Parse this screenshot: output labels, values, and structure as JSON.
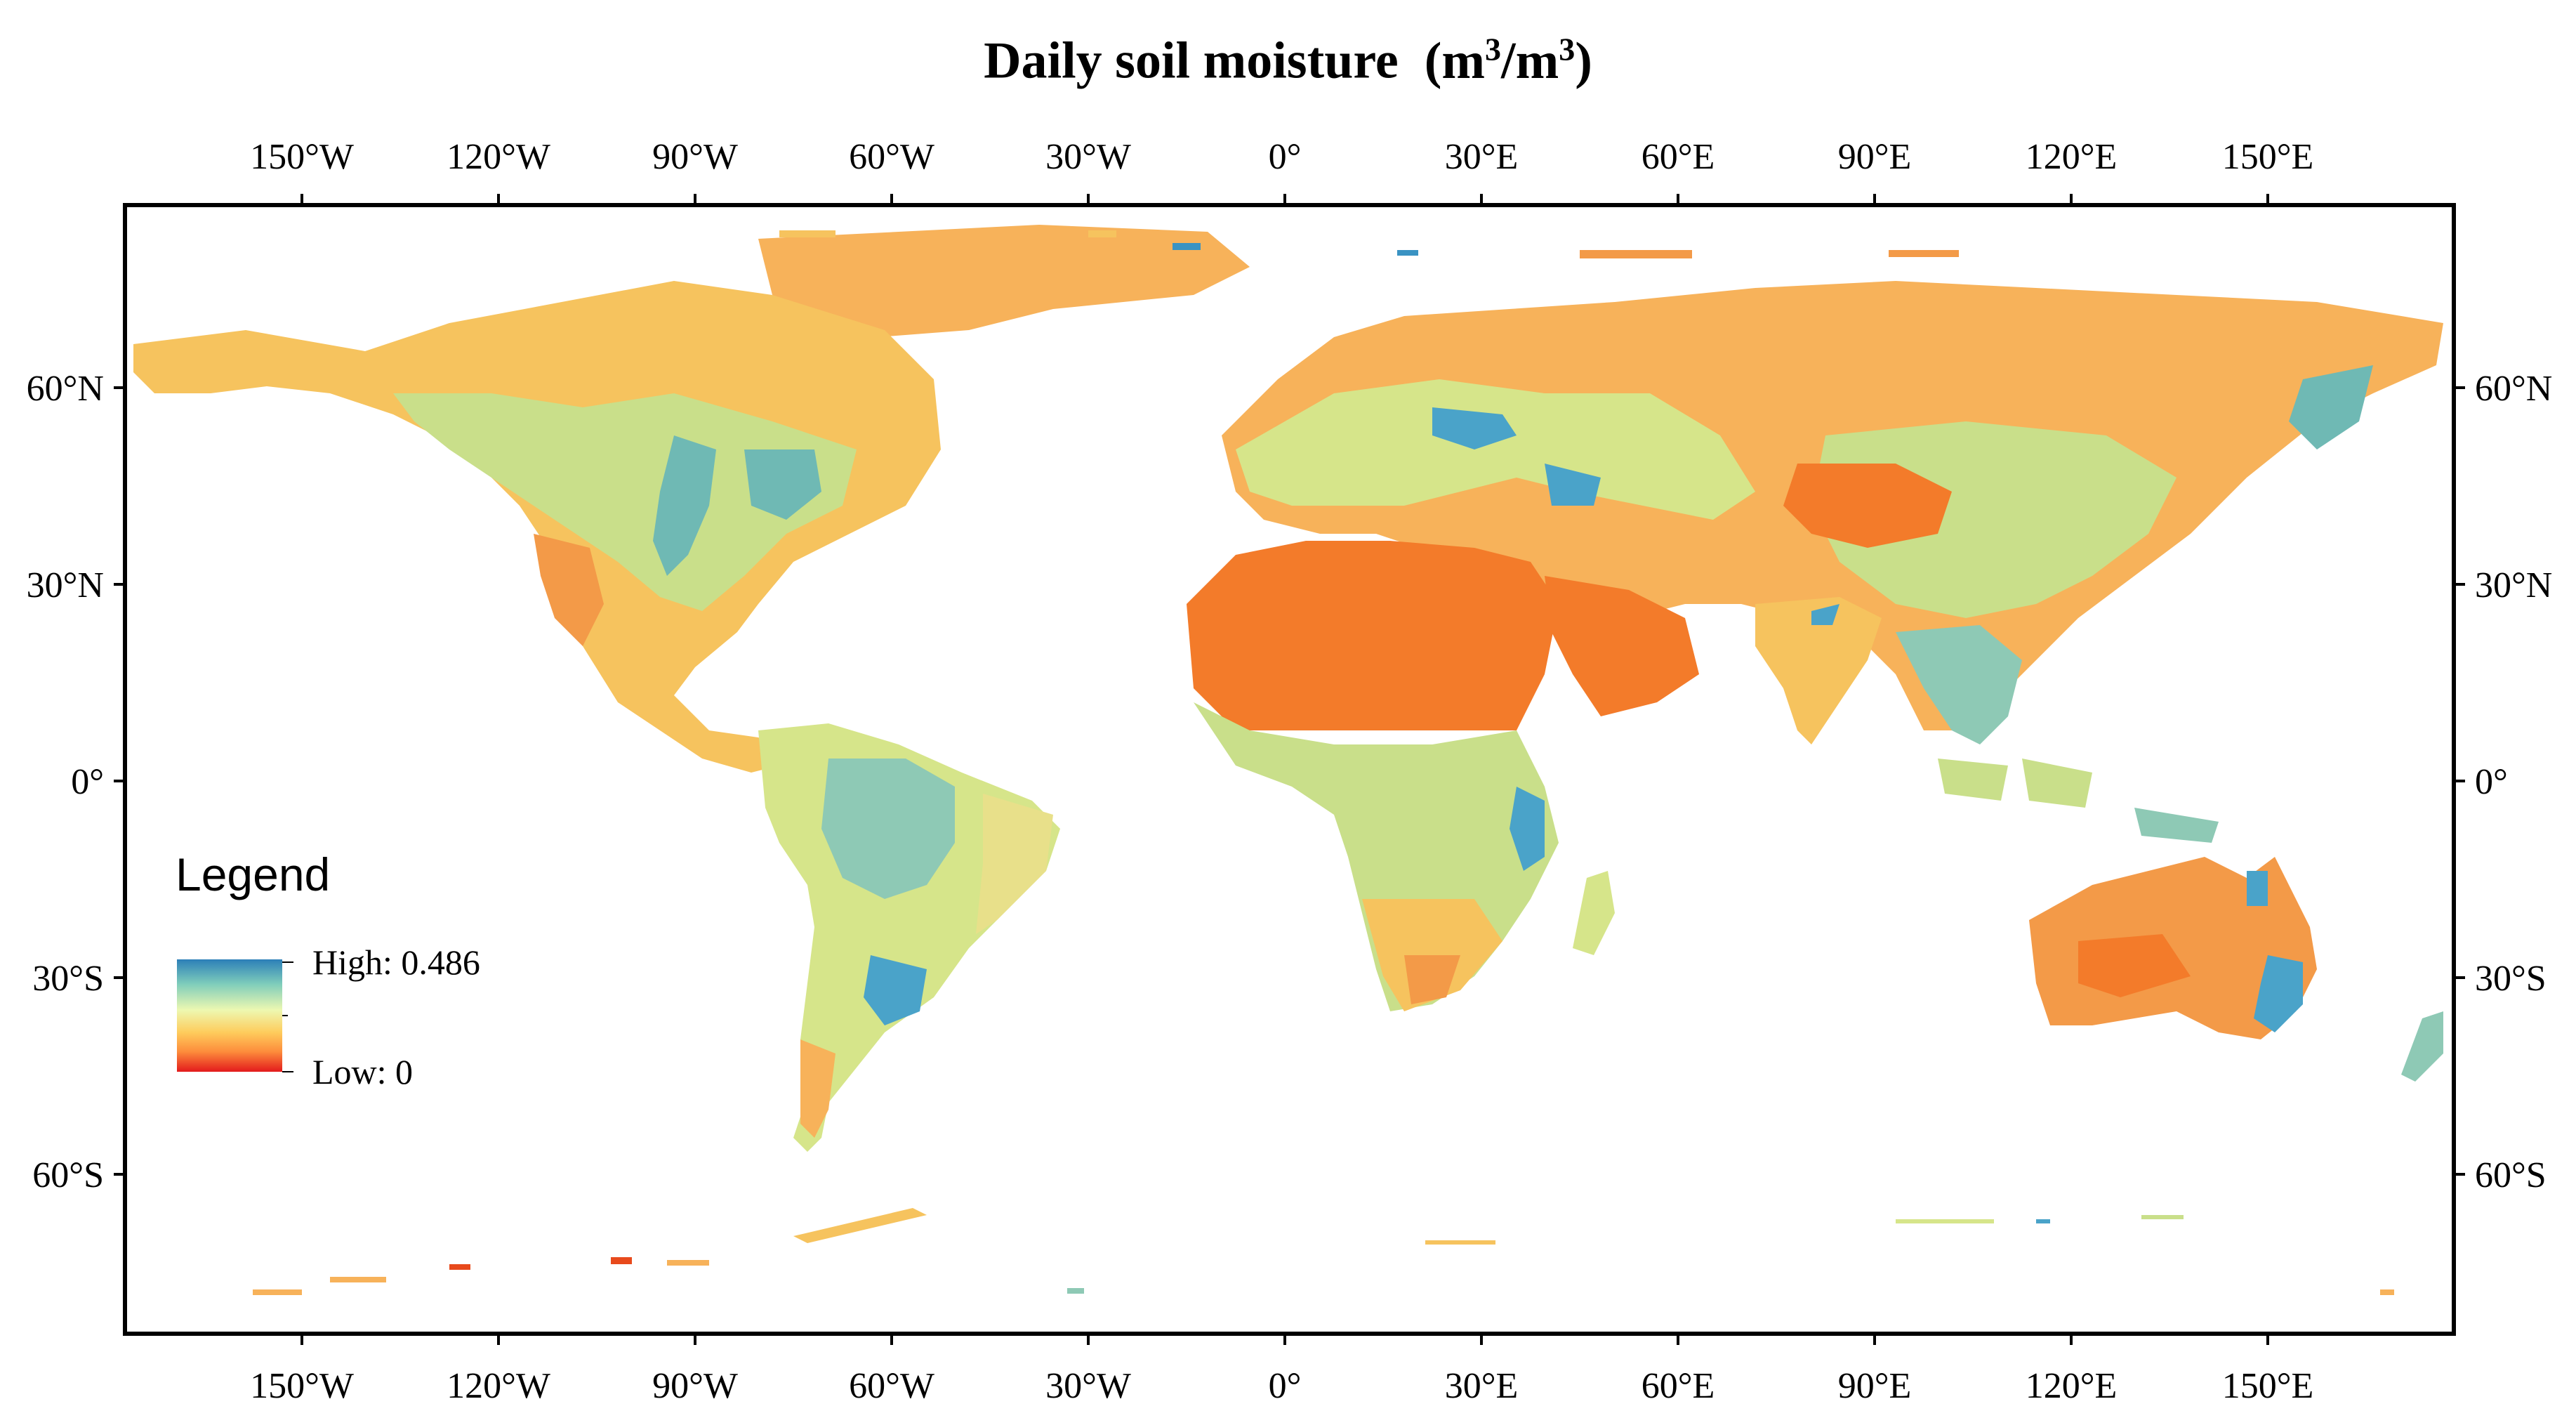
{
  "title": {
    "main": "Daily soil moisture",
    "unit_open": "(m",
    "unit_exp1": "3",
    "unit_mid": "/m",
    "unit_exp2": "3",
    "unit_close": ")"
  },
  "axes": {
    "lon_labels": [
      {
        "lon": -150,
        "label": "150°W"
      },
      {
        "lon": -120,
        "label": "120°W"
      },
      {
        "lon": -90,
        "label": "90°W"
      },
      {
        "lon": -60,
        "label": "60°W"
      },
      {
        "lon": -30,
        "label": "30°W"
      },
      {
        "lon": 0,
        "label": "0°"
      },
      {
        "lon": 30,
        "label": "30°E"
      },
      {
        "lon": 60,
        "label": "60°E"
      },
      {
        "lon": 90,
        "label": "90°E"
      },
      {
        "lon": 120,
        "label": "120°E"
      },
      {
        "lon": 150,
        "label": "150°E"
      }
    ],
    "lat_labels": [
      {
        "lat": 60,
        "label": "60°N"
      },
      {
        "lat": 30,
        "label": "30°N"
      },
      {
        "lat": 0,
        "label": "0°"
      },
      {
        "lat": -30,
        "label": "30°S"
      },
      {
        "lat": -60,
        "label": "60°S"
      }
    ]
  },
  "legend": {
    "title": "Legend",
    "high_label": "High: 0.486",
    "low_label": "Low: 0",
    "colors": [
      "#2c7fb8",
      "#7fcdbb",
      "#edf8b1",
      "#fecc5c",
      "#fd8d3c",
      "#e31a1c"
    ]
  },
  "palette": {
    "wet": "#3a93c3",
    "moist": "#8ec9b5",
    "mid": "#d6e58a",
    "dryish": "#f5d56a",
    "dry": "#f7a04a",
    "arid": "#f37b2a"
  },
  "regions": {
    "north_america": "North America",
    "greenland": "Greenland",
    "south_america": "South America",
    "africa": "Africa",
    "eurasia": "Eurasia",
    "arabia": "Arabia",
    "india": "India",
    "southeast_asia": "Southeast Asia",
    "australia": "Australia",
    "antarctica": "Antarctica"
  }
}
